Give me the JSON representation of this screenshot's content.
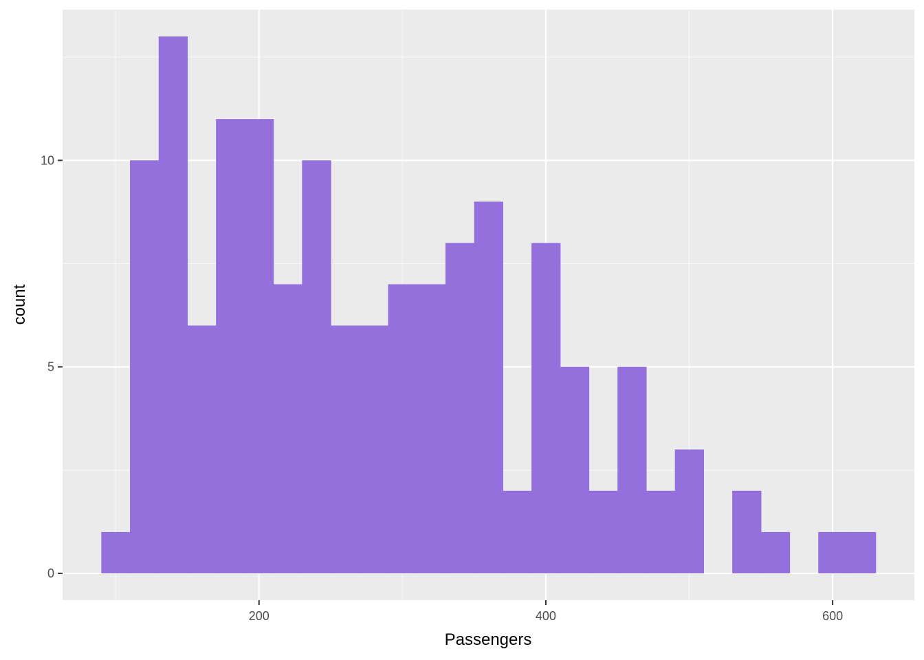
{
  "chart_data": {
    "type": "bar",
    "subtype": "histogram",
    "title": "",
    "xlabel": "Passengers",
    "ylabel": "count",
    "bin_width": 20,
    "bins": [
      {
        "x0": 90,
        "x1": 110,
        "count": 1
      },
      {
        "x0": 110,
        "x1": 130,
        "count": 10
      },
      {
        "x0": 130,
        "x1": 150,
        "count": 13
      },
      {
        "x0": 150,
        "x1": 170,
        "count": 6
      },
      {
        "x0": 170,
        "x1": 190,
        "count": 11
      },
      {
        "x0": 190,
        "x1": 210,
        "count": 11
      },
      {
        "x0": 210,
        "x1": 230,
        "count": 7
      },
      {
        "x0": 230,
        "x1": 250,
        "count": 10
      },
      {
        "x0": 250,
        "x1": 270,
        "count": 6
      },
      {
        "x0": 270,
        "x1": 290,
        "count": 6
      },
      {
        "x0": 290,
        "x1": 310,
        "count": 7
      },
      {
        "x0": 310,
        "x1": 330,
        "count": 7
      },
      {
        "x0": 330,
        "x1": 350,
        "count": 8
      },
      {
        "x0": 350,
        "x1": 370,
        "count": 9
      },
      {
        "x0": 370,
        "x1": 390,
        "count": 2
      },
      {
        "x0": 390,
        "x1": 410,
        "count": 8
      },
      {
        "x0": 410,
        "x1": 430,
        "count": 5
      },
      {
        "x0": 430,
        "x1": 450,
        "count": 2
      },
      {
        "x0": 450,
        "x1": 470,
        "count": 5
      },
      {
        "x0": 470,
        "x1": 490,
        "count": 2
      },
      {
        "x0": 490,
        "x1": 510,
        "count": 3
      },
      {
        "x0": 510,
        "x1": 530,
        "count": 0
      },
      {
        "x0": 530,
        "x1": 550,
        "count": 2
      },
      {
        "x0": 550,
        "x1": 570,
        "count": 1
      },
      {
        "x0": 570,
        "x1": 590,
        "count": 0
      },
      {
        "x0": 590,
        "x1": 610,
        "count": 1
      },
      {
        "x0": 610,
        "x1": 630,
        "count": 1
      }
    ],
    "xlim": [
      63,
      657
    ],
    "ylim": [
      -0.65,
      13.65
    ],
    "x_ticks": [
      200,
      400,
      600
    ],
    "x_tick_labels": [
      "200",
      "400",
      "600"
    ],
    "y_ticks": [
      0,
      5,
      10
    ],
    "y_tick_labels": [
      "0",
      "5",
      "10"
    ],
    "x_minor_ticks": [
      100,
      300,
      500
    ],
    "y_minor_ticks": [
      2.5,
      7.5,
      12.5
    ],
    "grid": true,
    "legend": "none",
    "colors": {
      "fill": "#9370DB",
      "panel_background": "#EBEBEB",
      "grid_major": "#FFFFFF",
      "grid_minor": "#F7F7F7",
      "tick_mark": "#333333"
    }
  }
}
